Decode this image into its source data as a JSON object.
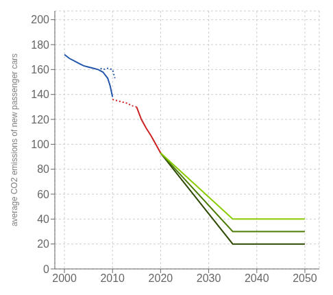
{
  "chart_data": {
    "type": "line",
    "ylabel": "average CO2 emissions of new passenger cars",
    "xlim": [
      1998,
      2053
    ],
    "ylim": [
      0,
      207
    ],
    "xticks": [
      2000,
      2010,
      2020,
      2030,
      2040,
      2050
    ],
    "yticks": [
      0,
      20,
      40,
      60,
      80,
      100,
      120,
      140,
      160,
      180,
      200
    ],
    "grid": true,
    "series": [
      {
        "x": [
          2000,
          2001,
          2002,
          2003,
          2004,
          2005,
          2006,
          2007,
          2008,
          2009,
          2009.5,
          2010
        ],
        "values": [
          172,
          169,
          167,
          165,
          163,
          162,
          161,
          160,
          158,
          153,
          147,
          138
        ],
        "color": "#2255aa",
        "line_style": "solid"
      },
      {
        "x": [
          2007.5,
          2008,
          2009,
          2010,
          2010.5
        ],
        "values": [
          161,
          160,
          161,
          160,
          153
        ],
        "color": "#2255aa",
        "line_style": "dotted"
      },
      {
        "x": [
          2010,
          2011,
          2012,
          2013,
          2014,
          2015
        ],
        "values": [
          136,
          135,
          134,
          133,
          131,
          130
        ],
        "color": "#cc2222",
        "line_style": "dotted"
      },
      {
        "x": [
          2015,
          2016,
          2017,
          2018,
          2019,
          2020
        ],
        "values": [
          130,
          120,
          113,
          107,
          100,
          93
        ],
        "color": "#cc2222",
        "line_style": "solid"
      },
      {
        "x": [
          2020,
          2035,
          2050
        ],
        "values": [
          93,
          20,
          20
        ],
        "color": "#2d4a00",
        "line_style": "solid"
      },
      {
        "x": [
          2020,
          2035,
          2050
        ],
        "values": [
          93,
          30,
          30
        ],
        "color": "#4a7a00",
        "line_style": "solid"
      },
      {
        "x": [
          2020,
          2035,
          2050
        ],
        "values": [
          93,
          40,
          40
        ],
        "color": "#88cc00",
        "line_style": "solid"
      }
    ]
  }
}
